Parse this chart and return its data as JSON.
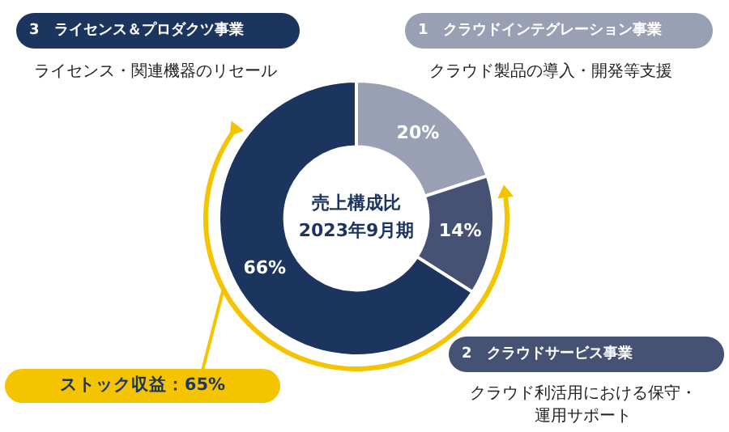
{
  "chart_data": {
    "type": "donut",
    "title": "売上構成比",
    "subtitle": "2023年9月期",
    "categories": [
      "1　クラウドインテグレーション事業",
      "2　クラウドサービス事業",
      "3　ライセンス＆プロダクツ事業"
    ],
    "values": [
      20,
      14,
      66
    ],
    "colors": [
      "#9aa0b4",
      "#465273",
      "#1c355e"
    ],
    "value_labels": [
      "20%",
      "14%",
      "66%"
    ],
    "annotations": [
      "クラウド製品の導入・開発等支援",
      "クラウド利活用における保守・運用サポート",
      "ライセンス・関連機器のリセール",
      "ストック収益：65%"
    ],
    "legend": false
  }
}
